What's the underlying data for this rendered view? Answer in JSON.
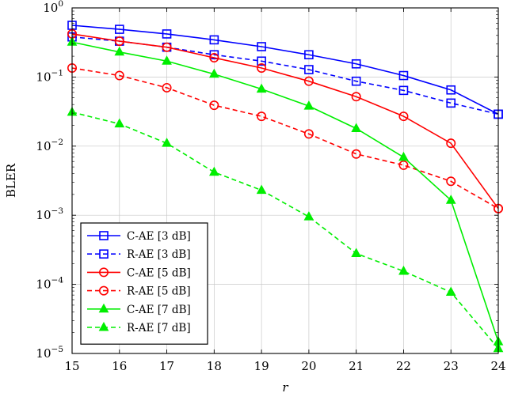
{
  "chart_data": {
    "type": "line",
    "xlabel": "r",
    "ylabel": "BLER",
    "x": [
      15,
      16,
      17,
      18,
      19,
      20,
      21,
      22,
      23,
      24
    ],
    "xlim": [
      15,
      24
    ],
    "ylim": [
      1e-05,
      1
    ],
    "yscale": "log",
    "x_ticks": [
      "15",
      "16",
      "17",
      "18",
      "19",
      "20",
      "21",
      "22",
      "23",
      "24"
    ],
    "y_ticks": [
      {
        "value": 1e-05,
        "base": "10",
        "exp": "−5"
      },
      {
        "value": 0.0001,
        "base": "10",
        "exp": "−4"
      },
      {
        "value": 0.001,
        "base": "10",
        "exp": "−3"
      },
      {
        "value": 0.01,
        "base": "10",
        "exp": "−2"
      },
      {
        "value": 0.1,
        "base": "10",
        "exp": "−1"
      },
      {
        "value": 1,
        "base": "10",
        "exp": "0"
      }
    ],
    "grid": true,
    "legend_position": "bottom-left",
    "series": [
      {
        "name": "C-AE [3 dB]",
        "color": "#0000ff",
        "dash": "solid",
        "marker": "square",
        "values": [
          0.56,
          0.49,
          0.42,
          0.345,
          0.275,
          0.21,
          0.155,
          0.105,
          0.065,
          0.029
        ]
      },
      {
        "name": "R-AE [3 dB]",
        "color": "#0000ff",
        "dash": "dashed",
        "marker": "square",
        "values": [
          0.38,
          0.33,
          0.27,
          0.21,
          0.17,
          0.128,
          0.087,
          0.064,
          0.042,
          0.029
        ]
      },
      {
        "name": "C-AE [5 dB]",
        "color": "#ff0000",
        "dash": "solid",
        "marker": "circle",
        "values": [
          0.42,
          0.33,
          0.27,
          0.19,
          0.135,
          0.087,
          0.052,
          0.027,
          0.011,
          0.00125
        ]
      },
      {
        "name": "R-AE [5 dB]",
        "color": "#ff0000",
        "dash": "dashed",
        "marker": "circle",
        "values": [
          0.135,
          0.105,
          0.07,
          0.039,
          0.027,
          0.015,
          0.0077,
          0.0053,
          0.0031,
          0.00125
        ]
      },
      {
        "name": "C-AE [7 dB]",
        "color": "#00ee00",
        "dash": "solid",
        "marker": "triangle",
        "values": [
          0.32,
          0.23,
          0.17,
          0.11,
          0.067,
          0.038,
          0.018,
          0.0069,
          0.00165,
          1.48e-05
        ]
      },
      {
        "name": "R-AE [7 dB]",
        "color": "#00ee00",
        "dash": "dashed",
        "marker": "triangle",
        "values": [
          0.031,
          0.021,
          0.011,
          0.0042,
          0.0023,
          0.00095,
          0.00028,
          0.000155,
          7.7e-05,
          1.18e-05
        ]
      }
    ]
  }
}
